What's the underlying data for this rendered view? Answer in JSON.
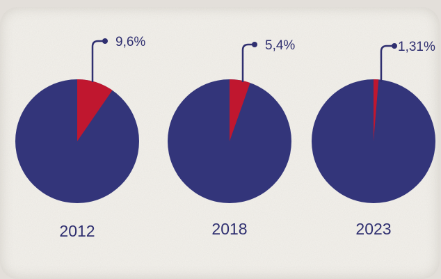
{
  "chart_data": [
    {
      "type": "pie",
      "category": "2012",
      "value": 9.6,
      "label": "9,6%",
      "colors": {
        "highlight": "#c0172f",
        "rest": "#33357a"
      }
    },
    {
      "type": "pie",
      "category": "2018",
      "value": 5.4,
      "label": "5,4%",
      "colors": {
        "highlight": "#c0172f",
        "rest": "#33357a"
      }
    },
    {
      "type": "pie",
      "category": "2023",
      "value": 1.31,
      "label": "1,31%",
      "colors": {
        "highlight": "#c0172f",
        "rest": "#33357a"
      }
    }
  ],
  "colors": {
    "background": "#f3f1ec",
    "text": "#2f2f70",
    "leader": "#2f2f70"
  }
}
